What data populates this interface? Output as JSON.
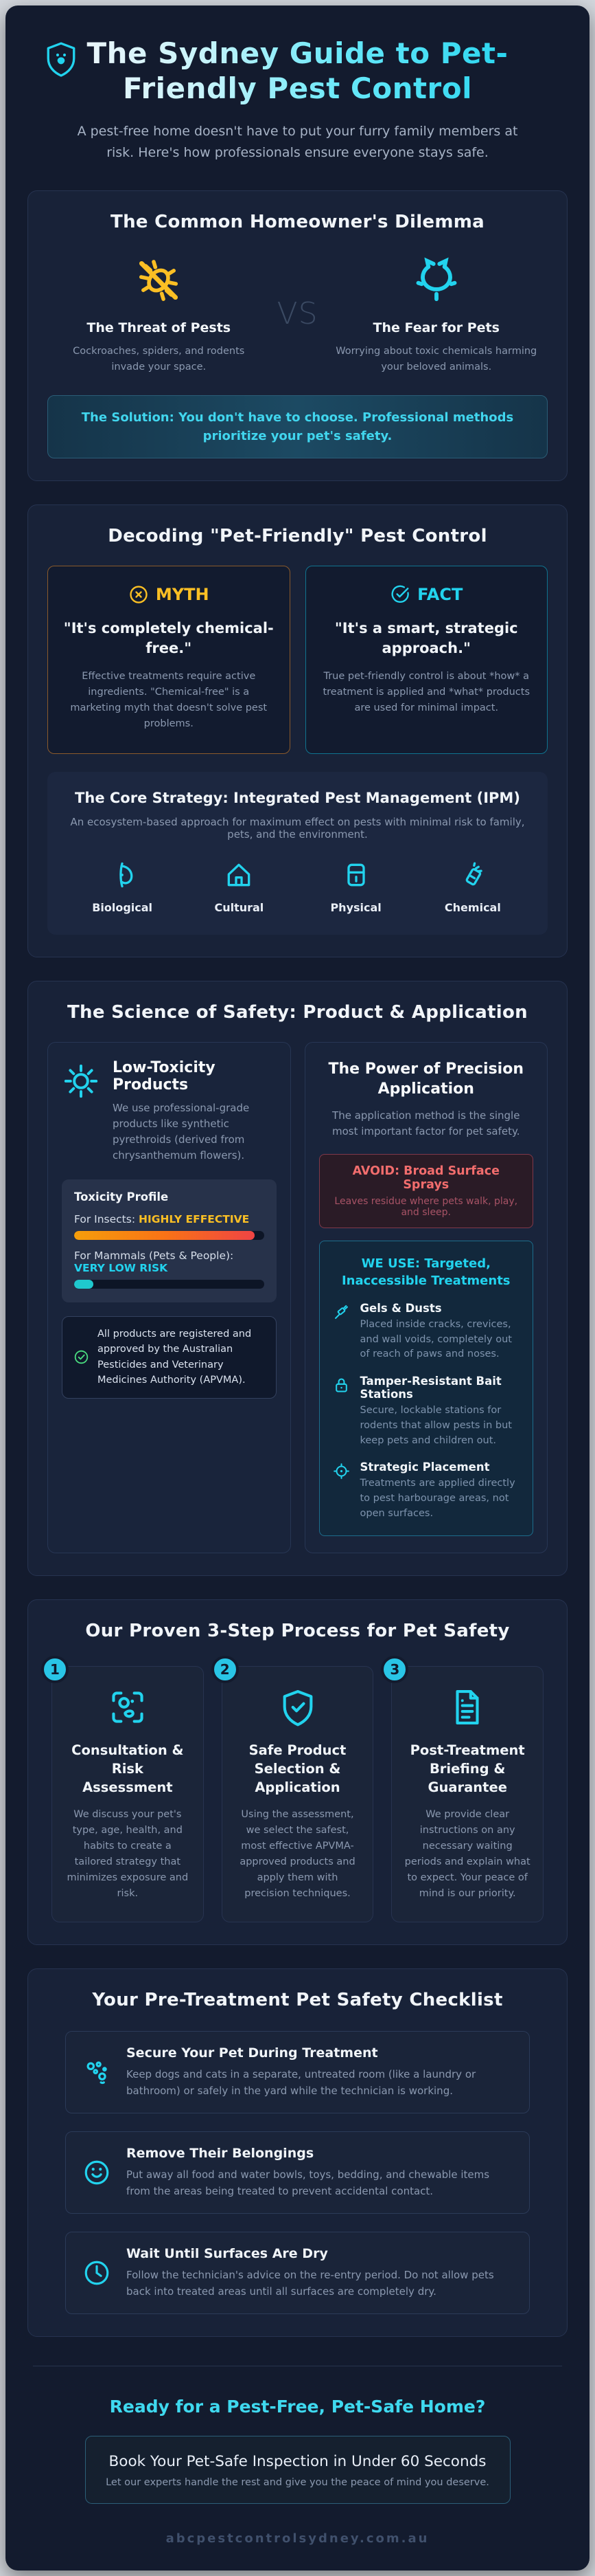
{
  "header": {
    "title": "The Sydney Guide to Pet-Friendly Pest Control",
    "subtitle": "A pest-free home doesn't have to put your furry family members at risk. Here's how professionals ensure everyone stays safe."
  },
  "dilemma": {
    "title": "The Common Homeowner's Dilemma",
    "vs": "VS",
    "threat": {
      "title": "The Threat of Pests",
      "desc": "Cockroaches, spiders, and rodents invade your space."
    },
    "fear": {
      "title": "The Fear for Pets",
      "desc": "Worrying about toxic chemicals harming your beloved animals."
    },
    "solution": "The Solution: You don't have to choose. Professional methods prioritize your pet's safety."
  },
  "decoding": {
    "title": "Decoding \"Pet-Friendly\" Pest Control",
    "myth": {
      "label": "MYTH",
      "quote": "\"It's completely chemical-free.\"",
      "desc": "Effective treatments require active ingredients. \"Chemical-free\" is a marketing myth that doesn't solve pest problems."
    },
    "fact": {
      "label": "FACT",
      "quote": "\"It's a smart, strategic approach.\"",
      "desc": "True pet-friendly control is about *how* a treatment is applied and *what* products are used for minimal impact."
    },
    "ipm": {
      "title": "The Core Strategy: Integrated Pest Management (IPM)",
      "desc": "An ecosystem-based approach for maximum effect on pests with minimal risk to family, pets, and the environment.",
      "pillars": [
        {
          "label": "Biological"
        },
        {
          "label": "Cultural"
        },
        {
          "label": "Physical"
        },
        {
          "label": "Chemical"
        }
      ]
    }
  },
  "science": {
    "title": "The Science of Safety: Product & Application",
    "products": {
      "title": "Low-Toxicity Products",
      "desc": "We use professional-grade products like synthetic pyrethroids (derived from chrysanthemum flowers).",
      "toxicity": {
        "title": "Toxicity Profile",
        "insects_label": "For Insects:",
        "insects_value": "HIGHLY EFFECTIVE",
        "insects_pct": 95,
        "mammals_label": "For Mammals (Pets & People):",
        "mammals_value": "VERY LOW RISK",
        "mammals_pct": 10
      },
      "approval": "All products are registered and approved by the Australian Pesticides and Veterinary Medicines Authority (APVMA)."
    },
    "application": {
      "title": "The Power of Precision Application",
      "desc": "The application method is the single most important factor for pet safety.",
      "avoid_title": "AVOID: Broad Surface Sprays",
      "avoid_desc": "Leaves residue where pets walk, play, and sleep.",
      "weuse_title": "WE USE: Targeted, Inaccessible Treatments",
      "items": [
        {
          "title": "Gels & Dusts",
          "desc": "Placed inside cracks, crevices, and wall voids, completely out of reach of paws and noses."
        },
        {
          "title": "Tamper-Resistant Bait Stations",
          "desc": "Secure, lockable stations for rodents that allow pests in but keep pets and children out."
        },
        {
          "title": "Strategic Placement",
          "desc": "Treatments are applied directly to pest harbourage areas, not open surfaces."
        }
      ]
    }
  },
  "process": {
    "title": "Our Proven 3-Step Process for Pet Safety",
    "steps": [
      {
        "number": "1",
        "title": "Consultation & Risk Assessment",
        "desc": "We discuss your pet's type, age, health, and habits to create a tailored strategy that minimizes exposure and risk."
      },
      {
        "number": "2",
        "title": "Safe Product Selection & Application",
        "desc": "Using the assessment, we select the safest, most effective APVMA-approved products and apply them with precision techniques."
      },
      {
        "number": "3",
        "title": "Post-Treatment Briefing & Guarantee",
        "desc": "We provide clear instructions on any necessary waiting periods and explain what to expect. Your peace of mind is our priority."
      }
    ]
  },
  "checklist": {
    "title": "Your Pre-Treatment Pet Safety Checklist",
    "items": [
      {
        "title": "Secure Your Pet During Treatment",
        "desc": "Keep dogs and cats in a separate, untreated room (like a laundry or bathroom) or safely in the yard while the technician is working."
      },
      {
        "title": "Remove Their Belongings",
        "desc": "Put away all food and water bowls, toys, bedding, and chewable items from the areas being treated to prevent accidental contact."
      },
      {
        "title": "Wait Until Surfaces Are Dry",
        "desc": "Follow the technician's advice on the re-entry period. Do not allow pets back into treated areas until all surfaces are completely dry."
      }
    ]
  },
  "cta": {
    "title": "Ready for a Pest-Free, Pet-Safe Home?",
    "button_title": "Book Your Pet-Safe Inspection in Under 60 Seconds",
    "button_sub": "Let our experts handle the rest and give you the peace of mind you deserve.",
    "domain": "abcpestcontrolsydney.com.au"
  },
  "colors": {
    "accent_cyan": "#22d3ee",
    "accent_amber": "#fbbf24",
    "danger_red": "#f26d6d",
    "success_green": "#4ade80",
    "card_bg": "#131b2e"
  }
}
